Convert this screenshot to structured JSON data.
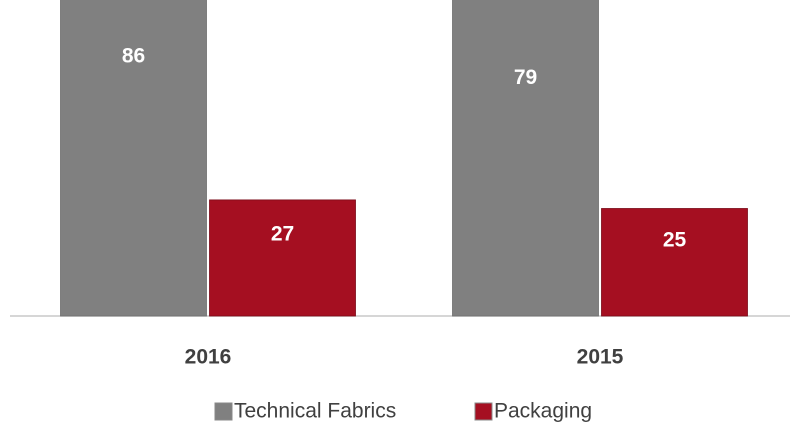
{
  "chart_data": {
    "type": "bar",
    "categories": [
      "2016",
      "2015"
    ],
    "series": [
      {
        "name": "Technical Fabrics",
        "color": "#808080",
        "values": [
          86,
          79
        ]
      },
      {
        "name": "Packaging",
        "color": "#a50f21",
        "values": [
          27,
          25
        ]
      }
    ],
    "legend": "bottom"
  }
}
